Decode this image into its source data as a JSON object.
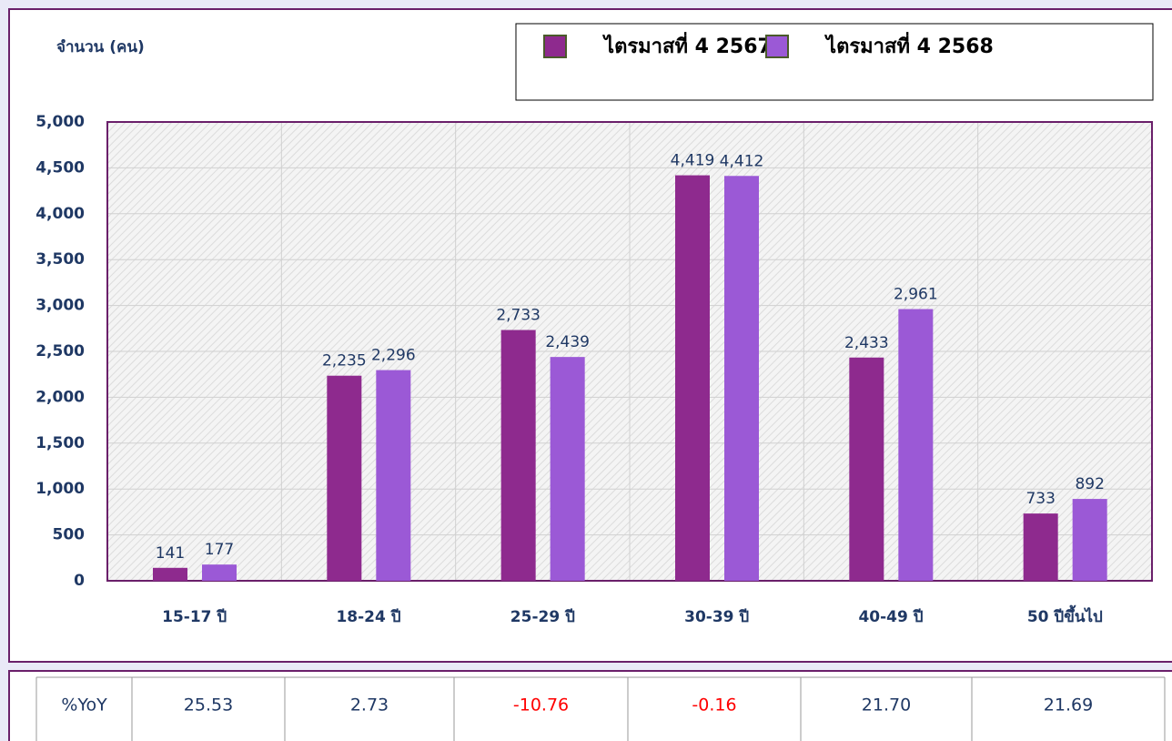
{
  "chart_data": {
    "type": "bar",
    "y_label": "จำนวน (คน)",
    "categories": [
      "15-17 ปี",
      "18-24 ปี",
      "25-29 ปี",
      "30-39 ปี",
      "40-49 ปี",
      "50 ปีขึ้นไป"
    ],
    "series": [
      {
        "name": "ไตรมาสที่ 4 2567",
        "color": "#8e2a8e",
        "values": [
          141,
          2235,
          2733,
          4419,
          2433,
          733
        ],
        "value_labels": [
          "141",
          "2,235",
          "2,733",
          "4,419",
          "2,433",
          "733"
        ]
      },
      {
        "name": "ไตรมาสที่ 4 2568",
        "color": "#9b59d6",
        "values": [
          177,
          2296,
          2439,
          4412,
          2961,
          892
        ],
        "value_labels": [
          "177",
          "2,296",
          "2,439",
          "4,412",
          "2,961",
          "892"
        ]
      }
    ],
    "ylim": [
      0,
      5000
    ],
    "yticks": [
      0,
      500,
      {
        "value": 1000,
        "label": "1,000"
      },
      {
        "value": 1500,
        "label": "1,500"
      },
      {
        "value": 2000,
        "label": "2,000"
      },
      {
        "value": 2500,
        "label": "2,500"
      },
      {
        "value": 3000,
        "label": "3,000"
      },
      {
        "value": 3500,
        "label": "3,500"
      },
      {
        "value": 4000,
        "label": "4,000"
      },
      {
        "value": 4500,
        "label": "4,500"
      },
      {
        "value": 5000,
        "label": "5,000"
      }
    ],
    "grid": true
  },
  "table": {
    "rows": [
      [
        "%YoY",
        "25.53",
        "2.73",
        "-10.76",
        "-0.16",
        "21.70",
        "21.69"
      ]
    ]
  }
}
